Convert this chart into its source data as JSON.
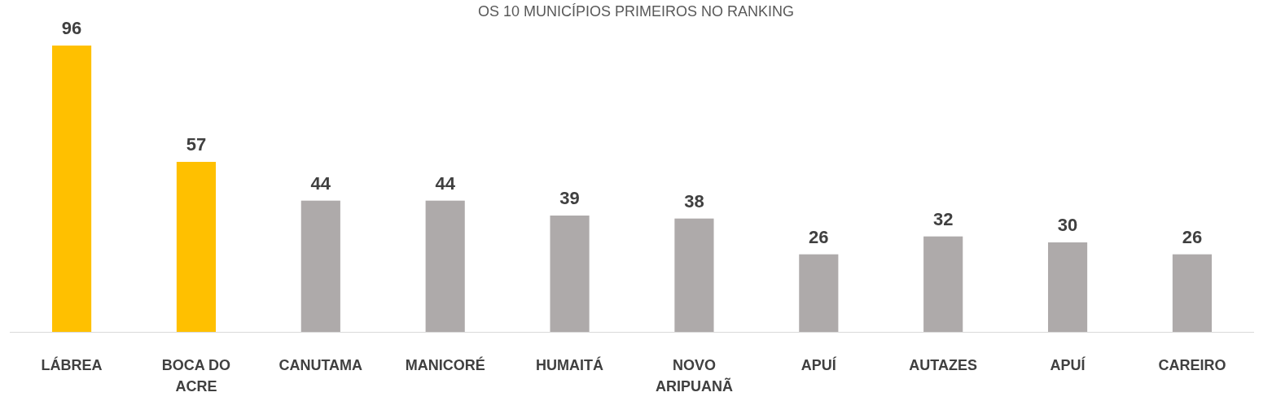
{
  "chart_data": {
    "type": "bar",
    "title": "OS 10 MUNICÍPIOS PRIMEIROS NO RANKING",
    "categories": [
      "LÁBREA",
      "BOCA DO ACRE",
      "CANUTAMA",
      "MANICORÉ",
      "HUMAITÁ",
      "NOVO ARIPUANÃ",
      "APUÍ",
      "AUTAZES",
      "APUÍ",
      "CAREIRO"
    ],
    "values": [
      96,
      57,
      44,
      44,
      39,
      38,
      26,
      32,
      30,
      26
    ],
    "colors": [
      "#ffc000",
      "#ffc000",
      "#aeaaaa",
      "#aeaaaa",
      "#aeaaaa",
      "#aeaaaa",
      "#aeaaaa",
      "#aeaaaa",
      "#aeaaaa",
      "#aeaaaa"
    ],
    "data_labels": true
  }
}
